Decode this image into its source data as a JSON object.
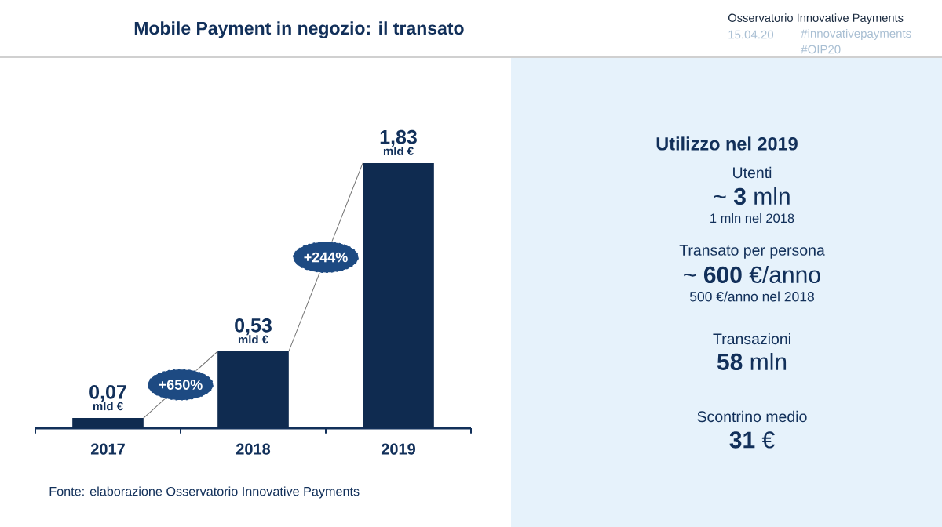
{
  "chart_data": [
    {
      "type": "bar",
      "title": "Mobile Payment in negozio: il transato",
      "categories": [
        "2017",
        "2018",
        "2019"
      ],
      "values": [
        0.07,
        0.53,
        1.83
      ],
      "color": "#0f2b50",
      "value_labels": [
        "0,07",
        "0,53",
        "1,83"
      ],
      "annotations": [
        "+650%",
        "+244%",
        {
          "text": "mld €",
          "x": "2017",
          "y": 0.07
        },
        {
          "text": "mld €",
          "x": "2018",
          "y": 0.53
        },
        {
          "text": "mld €",
          "x": "2019",
          "y": 1.83
        },
        "Osservatorio Innovative Payments",
        "15.04.20",
        "#innovativepayments",
        "#OIP20",
        "Fonte: elaborazione Osservatorio Innovative Payments"
      ]
    },
    {
      "type": "other",
      "title": "Utilizzo nel 2019",
      "annotations": [
        "Utenti",
        "~ **3** mln",
        "1 mln nel 2018",
        "Transato per persona",
        "~ **600** €/anno",
        "500 €/anno nel 2018",
        "Transazioni",
        "**58** mln",
        "Scontrino medio",
        "**31** €"
      ]
    }
  ]
}
